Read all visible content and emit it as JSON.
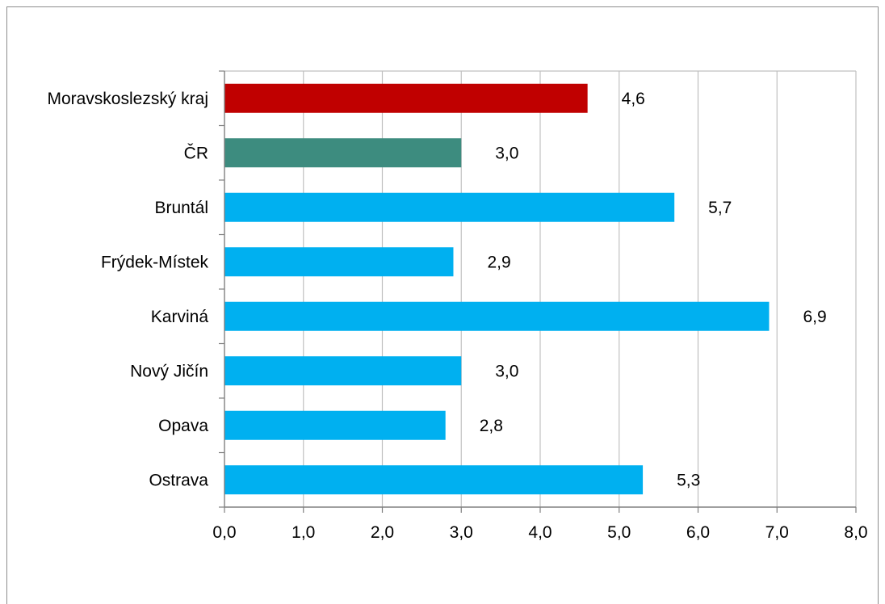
{
  "chart_data": {
    "type": "bar",
    "orientation": "horizontal",
    "title": "",
    "xlabel": "",
    "ylabel": "",
    "categories": [
      "Moravskoslezský kraj",
      "ČR",
      "Bruntál",
      "Frýdek-Místek",
      "Karviná",
      "Nový Jičín",
      "Opava",
      "Ostrava"
    ],
    "values": [
      4.6,
      3.0,
      5.7,
      2.9,
      6.9,
      3.0,
      2.8,
      5.3
    ],
    "value_labels": [
      "4,6",
      "3,0",
      "5,7",
      "2,9",
      "6,9",
      "3,0",
      "2,8",
      "5,3"
    ],
    "bar_colors": [
      "#c00000",
      "#3d8c7f",
      "#00b0f0",
      "#00b0f0",
      "#00b0f0",
      "#00b0f0",
      "#00b0f0",
      "#00b0f0"
    ],
    "xlim": [
      0,
      8
    ],
    "x_ticks": [
      0,
      1,
      2,
      3,
      4,
      5,
      6,
      7,
      8
    ],
    "x_tick_labels": [
      "0,0",
      "1,0",
      "2,0",
      "3,0",
      "4,0",
      "5,0",
      "6,0",
      "7,0",
      "8,0"
    ],
    "grid": "vertical",
    "legend": "none"
  }
}
